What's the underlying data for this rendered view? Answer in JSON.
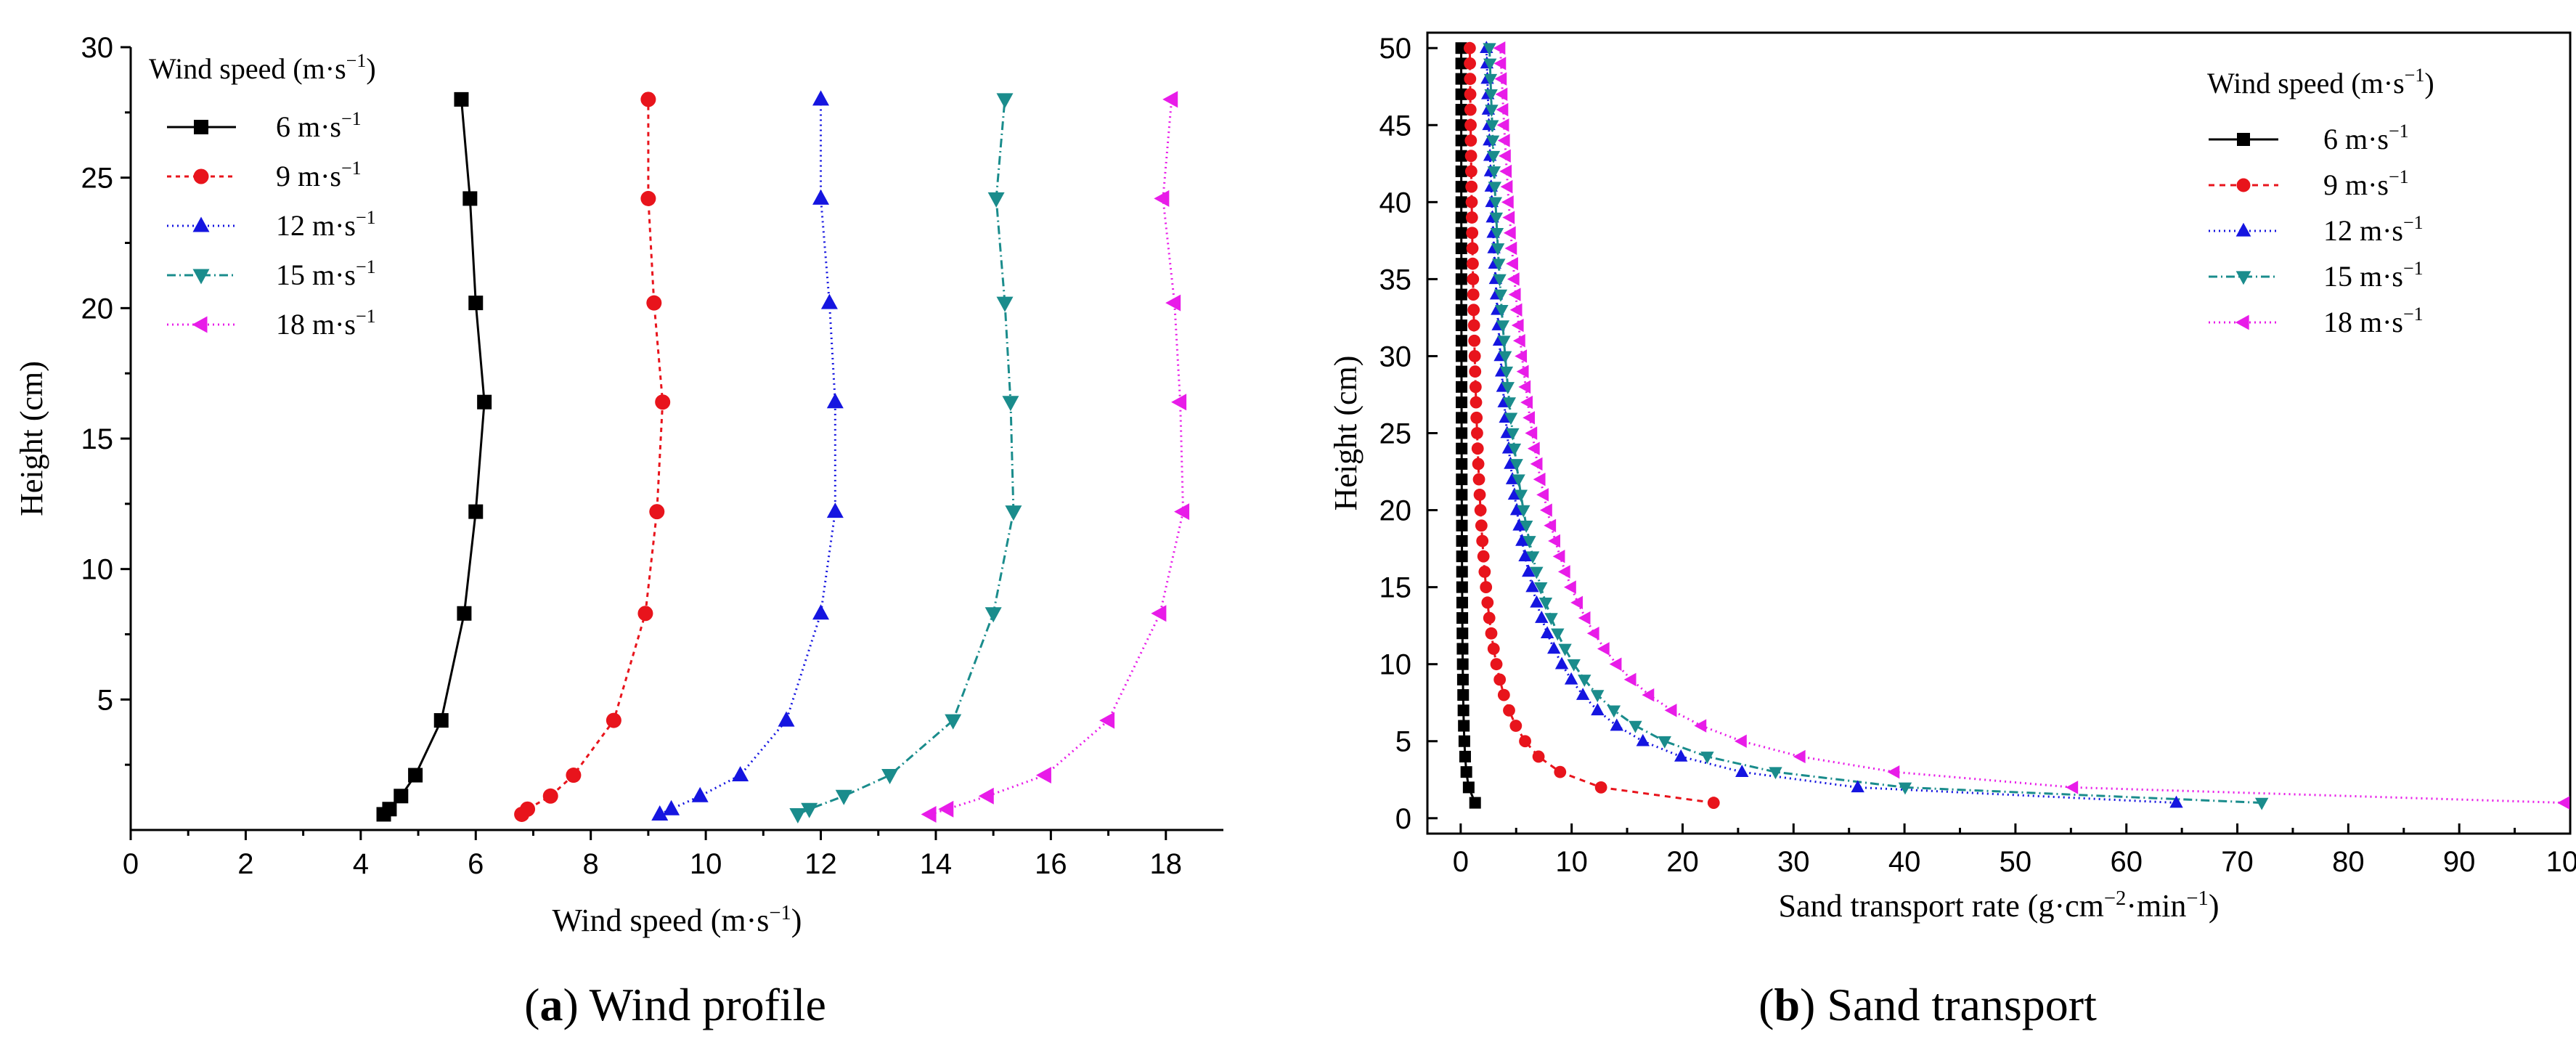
{
  "chart_data": [
    {
      "type": "line",
      "caption_letter": "a",
      "caption_text": "Wind profile",
      "xlabel": "Wind speed (m·s",
      "xlabel_sup": "−1",
      "xlabel_end": ")",
      "ylabel": "Height (cm)",
      "xlim": [
        0,
        19
      ],
      "ylim": [
        0,
        30
      ],
      "xticks": [
        0,
        2,
        4,
        6,
        8,
        10,
        12,
        14,
        16,
        18
      ],
      "yticks": [
        5,
        10,
        15,
        20,
        25,
        30
      ],
      "legend_title": "Wind speed (m·s",
      "legend_title_sup": "−1",
      "legend_title_end": ")",
      "legend_position": "top-left",
      "series": [
        {
          "name": "6 m·s",
          "name_sup": "−1",
          "color": "#000000",
          "marker": "square",
          "dash": "",
          "x": [
            4.4,
            4.5,
            4.7,
            4.95,
            5.4,
            5.8,
            6.0,
            6.15,
            6.0,
            5.9,
            5.75
          ],
          "y": [
            0.6,
            0.8,
            1.3,
            2.1,
            4.2,
            8.3,
            12.2,
            16.4,
            20.2,
            24.2,
            28.0
          ]
        },
        {
          "name": "9 m·s",
          "name_sup": "−1",
          "color": "#e8141c",
          "marker": "circle",
          "dash": "6,6",
          "x": [
            6.8,
            6.9,
            7.3,
            7.7,
            8.4,
            8.95,
            9.15,
            9.25,
            9.1,
            9.0,
            9.0
          ],
          "y": [
            0.6,
            0.8,
            1.3,
            2.1,
            4.2,
            8.3,
            12.2,
            16.4,
            20.2,
            24.2,
            28.0
          ]
        },
        {
          "name": "12 m·s",
          "name_sup": "−1",
          "color": "#1515e0",
          "marker": "triangle-up",
          "dash": "2,5",
          "x": [
            9.2,
            9.4,
            9.9,
            10.6,
            11.4,
            12.0,
            12.25,
            12.25,
            12.15,
            12.0,
            12.0
          ],
          "y": [
            0.6,
            0.8,
            1.3,
            2.1,
            4.2,
            8.3,
            12.2,
            16.4,
            20.2,
            24.2,
            28.0
          ]
        },
        {
          "name": "15 m·s",
          "name_sup": "−1",
          "color": "#1a8c8c",
          "marker": "triangle-down",
          "dash": "12,5,2,5",
          "x": [
            11.6,
            11.8,
            12.4,
            13.2,
            14.3,
            15.0,
            15.35,
            15.3,
            15.2,
            15.05,
            15.2
          ],
          "y": [
            0.6,
            0.8,
            1.3,
            2.1,
            4.2,
            8.3,
            12.2,
            16.4,
            20.2,
            24.2,
            28.0
          ]
        },
        {
          "name": "18 m·s",
          "name_sup": "−1",
          "color": "#e81ce8",
          "marker": "triangle-left",
          "dash": "2,5",
          "x": [
            13.9,
            14.2,
            14.9,
            15.9,
            17.0,
            17.9,
            18.3,
            18.25,
            18.15,
            17.95,
            18.1
          ],
          "y": [
            0.6,
            0.8,
            1.3,
            2.1,
            4.2,
            8.3,
            12.2,
            16.4,
            20.2,
            24.2,
            28.0
          ]
        }
      ]
    },
    {
      "type": "line",
      "caption_letter": "b",
      "caption_text": "Sand transport",
      "xlabel": "Sand transport rate (g·cm",
      "xlabel_sup": "−2",
      "xlabel_mid": "·min",
      "xlabel_sup2": "−1",
      "xlabel_end": ")",
      "ylabel": "Height (cm)",
      "xlim": [
        -3,
        100
      ],
      "ylim": [
        -1,
        51
      ],
      "xticks": [
        0,
        10,
        20,
        30,
        40,
        50,
        60,
        70,
        80,
        90,
        100
      ],
      "yticks": [
        0,
        5,
        10,
        15,
        20,
        25,
        30,
        35,
        40,
        45,
        50
      ],
      "legend_title": "Wind speed (m·s",
      "legend_title_sup": "−1",
      "legend_title_end": ")",
      "legend_position": "top-right",
      "heights": [
        1,
        2,
        3,
        4,
        5,
        6,
        7,
        8,
        9,
        10,
        11,
        12,
        13,
        14,
        15,
        16,
        17,
        18,
        19,
        20,
        21,
        22,
        23,
        24,
        25,
        26,
        27,
        28,
        29,
        30,
        31,
        32,
        33,
        34,
        35,
        36,
        37,
        38,
        39,
        40,
        41,
        42,
        43,
        44,
        45,
        46,
        47,
        48,
        49,
        50
      ],
      "series": [
        {
          "name": "6 m·s",
          "name_sup": "−1",
          "color": "#000000",
          "marker": "square",
          "dash": "",
          "q1": 1.3
        },
        {
          "name": "9 m·s",
          "name_sup": "−1",
          "color": "#e8141c",
          "marker": "circle",
          "dash": "8,7",
          "q1": 22.8
        },
        {
          "name": "12 m·s",
          "name_sup": "−1",
          "color": "#1515e0",
          "marker": "triangle-up",
          "dash": "2,5",
          "q1": 64.5
        },
        {
          "name": "15 m·s",
          "name_sup": "−1",
          "color": "#1a8c8c",
          "marker": "triangle-down",
          "dash": "12,5,2,5",
          "q1": 72.2
        },
        {
          "name": "18 m·s",
          "name_sup": "−1",
          "color": "#e81ce8",
          "marker": "triangle-left",
          "dash": "2,5",
          "q1": 99.5
        }
      ]
    }
  ]
}
